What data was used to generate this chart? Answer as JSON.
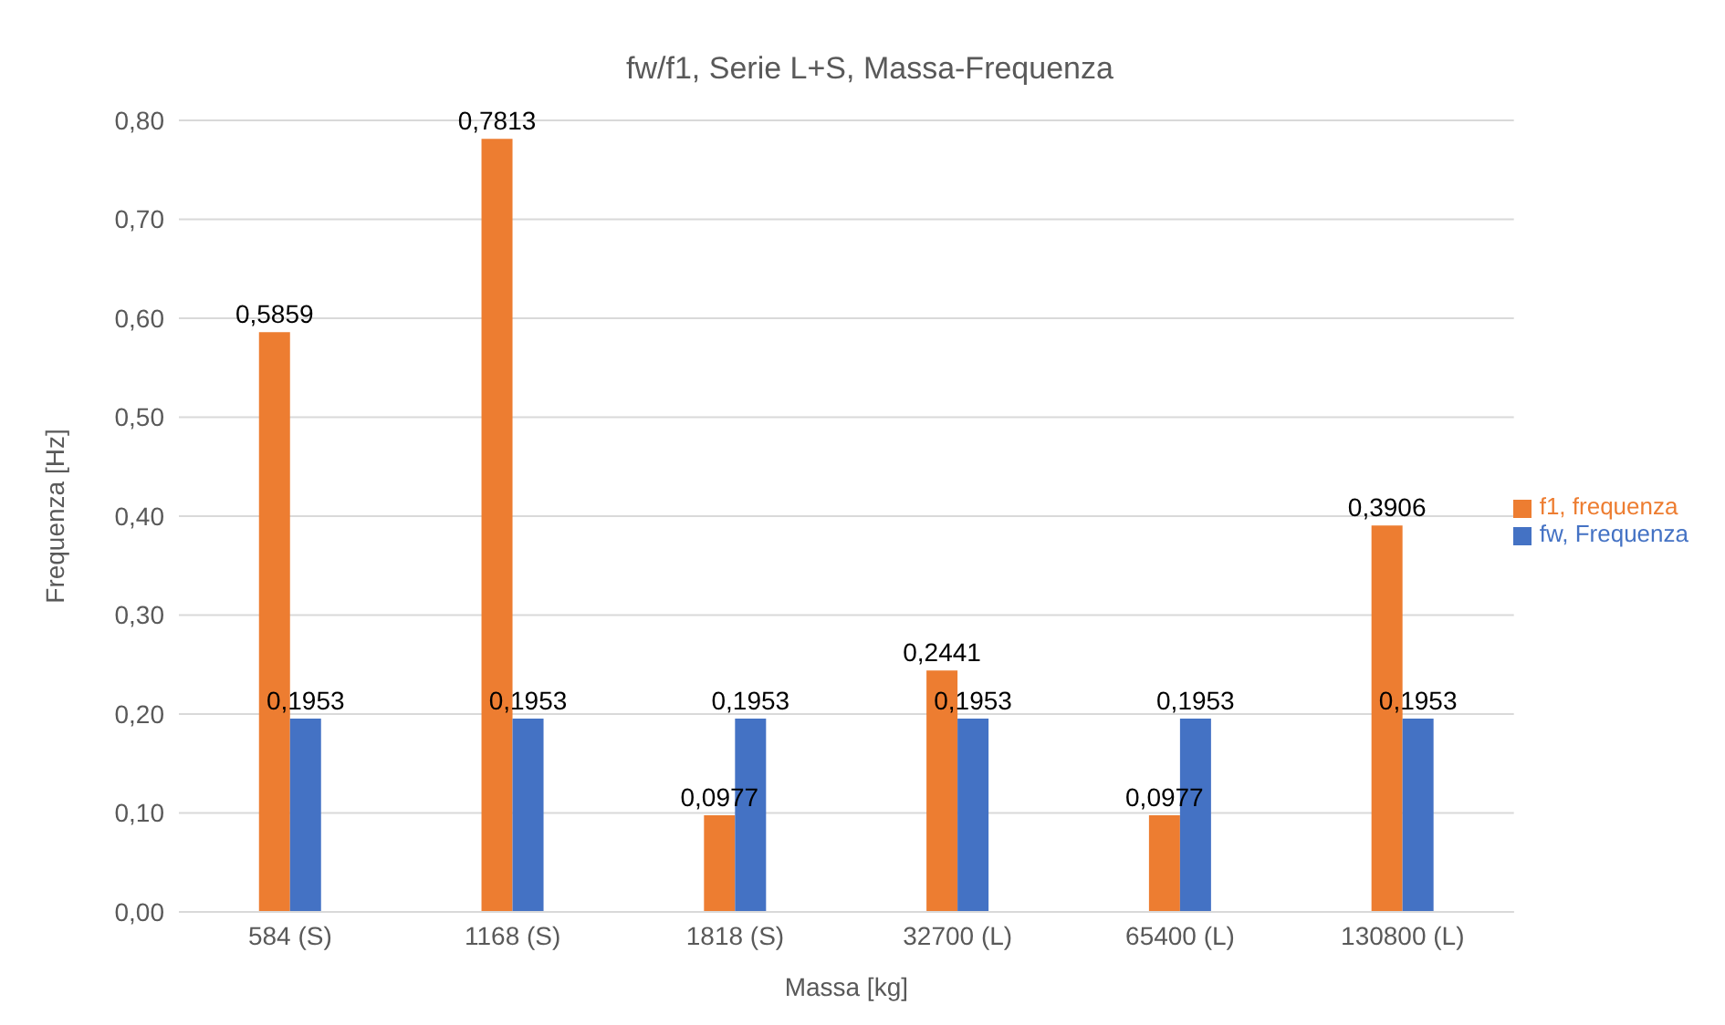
{
  "chart_data": {
    "type": "bar",
    "title": "fw/f1, Serie L+S, Massa-Frequenza",
    "xlabel": "Massa [kg]",
    "ylabel": "Frequenza [Hz]",
    "categories": [
      "584 (S)",
      "1168 (S)",
      "1818 (S)",
      "32700 (L)",
      "65400 (L)",
      "130800 (L)"
    ],
    "series": [
      {
        "name": "f1, frequenza",
        "color": "#ed7d31",
        "values": [
          0.5859,
          0.7813,
          0.0977,
          0.2441,
          0.0977,
          0.3906
        ],
        "value_labels": [
          "0,5859",
          "0,7813",
          "0,0977",
          "0,2441",
          "0,0977",
          "0,3906"
        ]
      },
      {
        "name": "fw, Frequenza",
        "color": "#4472c4",
        "values": [
          0.1953,
          0.1953,
          0.1953,
          0.1953,
          0.1953,
          0.1953
        ],
        "value_labels": [
          "0,1953",
          "0,1953",
          "0,1953",
          "0,1953",
          "0,1953",
          "0,1953"
        ]
      }
    ],
    "ylim": [
      0,
      0.8
    ],
    "yticks": [
      {
        "value": 0,
        "label": "0,00"
      },
      {
        "value": 0.1,
        "label": "0,10"
      },
      {
        "value": 0.2,
        "label": "0,20"
      },
      {
        "value": 0.3,
        "label": "0,30"
      },
      {
        "value": 0.4,
        "label": "0,40"
      },
      {
        "value": 0.5,
        "label": "0,50"
      },
      {
        "value": 0.6,
        "label": "0,60"
      },
      {
        "value": 0.7,
        "label": "0,70"
      },
      {
        "value": 0.8,
        "label": "0,80"
      }
    ],
    "grid": "y",
    "legend": "right"
  }
}
